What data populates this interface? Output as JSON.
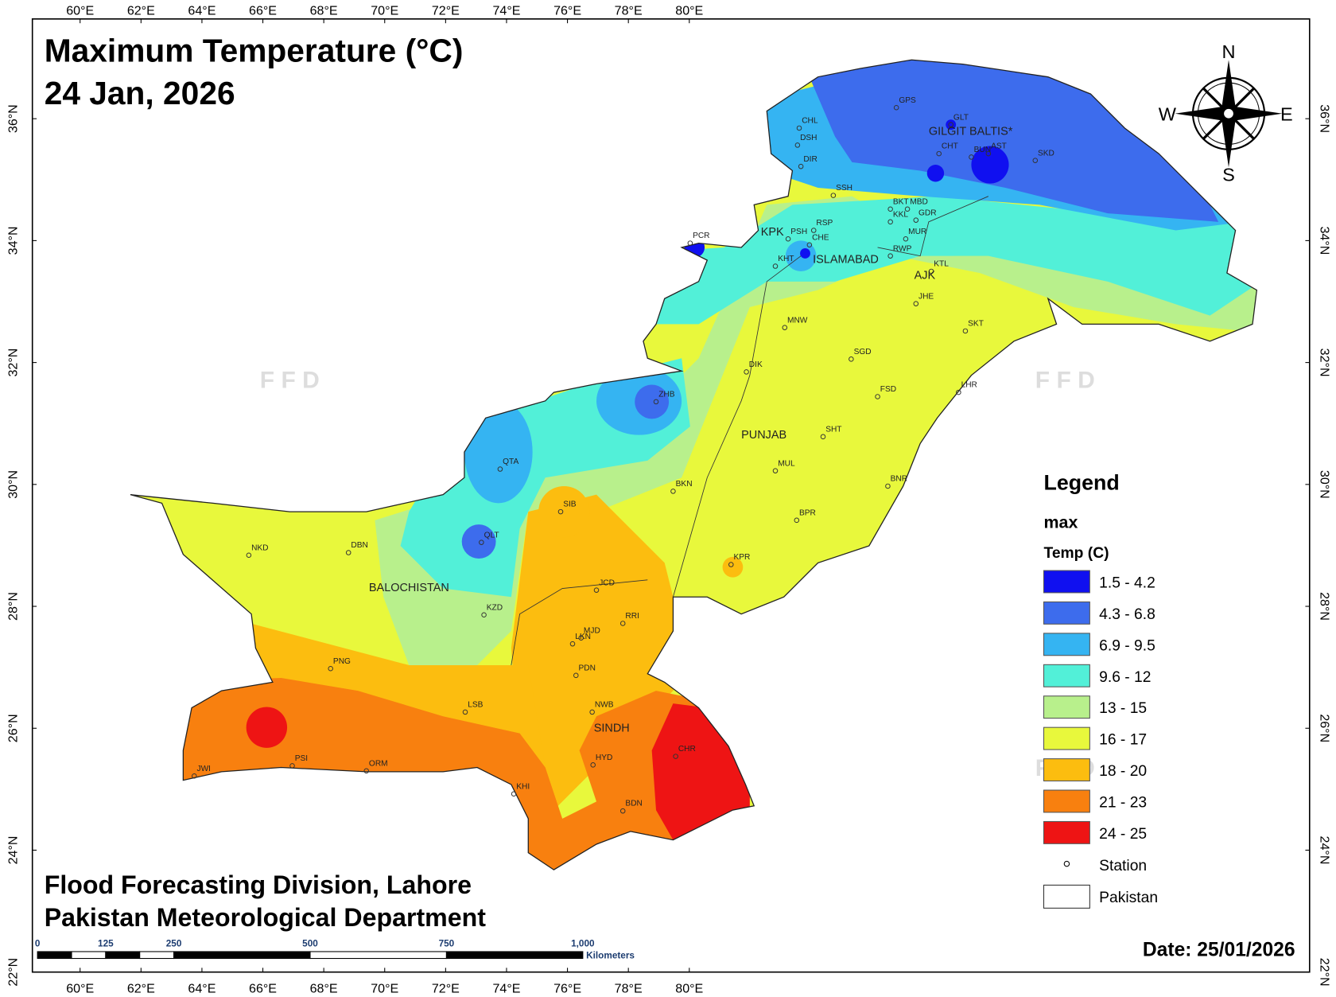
{
  "header": {
    "title": "Maximum Temperature (°C)",
    "date_line": "24 Jan, 2026"
  },
  "lon_labels": [
    "60°E",
    "62°E",
    "64°E",
    "66°E",
    "68°E",
    "70°E",
    "72°E",
    "74°E",
    "76°E",
    "78°E",
    "80°E"
  ],
  "lat_labels": [
    "22°N",
    "24°N",
    "26°N",
    "28°N",
    "30°N",
    "32°N",
    "34°N",
    "36°N"
  ],
  "compass": {
    "n": "N",
    "s": "S",
    "e": "E",
    "w": "W"
  },
  "watermarks": [
    "F F D",
    "F F D",
    "F F D"
  ],
  "regions": [
    "GILGIT BALTIS*",
    "KPK",
    "ISLAMABAD",
    "AJK",
    "PUNJAB",
    "BALOCHISTAN",
    "SINDH"
  ],
  "stations": [
    "GPS",
    "GLT",
    "CHL",
    "DSH",
    "CHT",
    "BUN",
    "AST",
    "SKD",
    "DIR",
    "SSH",
    "BKT",
    "MBD",
    "KKL",
    "GDR",
    "PSH",
    "RSP",
    "CHE",
    "KHT",
    "PCR",
    "RWP",
    "MUR",
    "KTL",
    "JHE",
    "SKT",
    "MNW",
    "SGD",
    "DIK",
    "ZHB",
    "FSD",
    "LHR",
    "SHT",
    "QTA",
    "MUL",
    "BKN",
    "BNR",
    "SIB",
    "BPR",
    "NKD",
    "DBN",
    "QLT",
    "KPR",
    "JCD",
    "KZD",
    "RRI",
    "LKN",
    "MJD",
    "PNG",
    "PDN",
    "LSB",
    "NWB",
    "CHR",
    "HYD",
    "PSI",
    "JWI",
    "ORM",
    "KHI",
    "BDN"
  ],
  "legend": {
    "title": "Legend",
    "field": "max",
    "unit": "Temp (C)",
    "classes": [
      {
        "label": "1.5 - 4.2",
        "color": "#1010f0"
      },
      {
        "label": "4.3 - 6.8",
        "color": "#3d6ced"
      },
      {
        "label": "6.9 - 9.5",
        "color": "#35b4f2"
      },
      {
        "label": "9.6 - 12",
        "color": "#52f0d8"
      },
      {
        "label": "13 - 15",
        "color": "#b8f08c"
      },
      {
        "label": "16 - 17",
        "color": "#e8f83c"
      },
      {
        "label": "18 - 20",
        "color": "#fcbd0f"
      },
      {
        "label": "21 - 23",
        "color": "#f8800f"
      },
      {
        "label": "24 - 25",
        "color": "#ee1414"
      }
    ],
    "station": "Station",
    "boundary": "Pakistan"
  },
  "footer": [
    "Flood Forecasting Division, Lahore",
    "Pakistan Meteorological Department"
  ],
  "scale_bar": {
    "labels": [
      "0",
      "125",
      "250",
      "500",
      "750",
      "1,000"
    ],
    "unit": "Kilometers"
  },
  "date": "Date: 25/01/2026"
}
